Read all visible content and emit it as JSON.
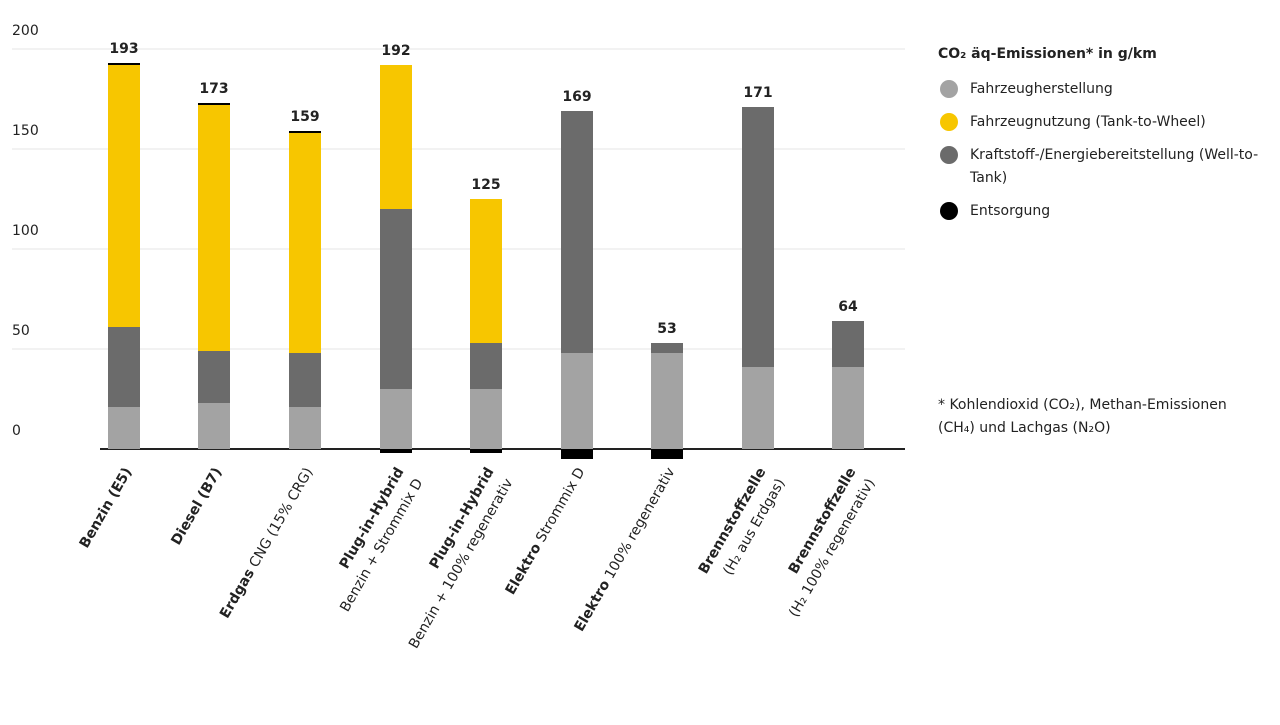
{
  "chart_data": {
    "type": "stacked_bar",
    "categories": [
      [
        {
          "b": "Benzin (E5)"
        }
      ],
      [
        {
          "b": "Diesel (B7)"
        }
      ],
      [
        {
          "b": "Erdgas",
          "t": " CNG (15% CRG)"
        }
      ],
      [
        {
          "b": "Plug-in-Hybrid"
        },
        {
          "t": "Benzin + Strommix D"
        }
      ],
      [
        {
          "b": "Plug-in-Hybrid"
        },
        {
          "t": "Benzin + 100% regenerativ"
        }
      ],
      [
        {
          "b": "Elektro",
          "t": " Strommix D"
        }
      ],
      [
        {
          "b": "Elektro",
          "t": " 100% regenerativ"
        }
      ],
      [
        {
          "b": "Brennstoffzelle"
        },
        {
          "t": "(H₂ aus Erdgas)"
        }
      ],
      [
        {
          "b": "Brennstoffzelle"
        },
        {
          "t": "(H₂ 100% regenerativ)"
        }
      ]
    ],
    "series": [
      {
        "name": "Fahrzeugherstellung",
        "color": "#a3a3a3",
        "values": [
          21,
          23,
          21,
          30,
          30,
          48,
          48,
          41,
          41
        ]
      },
      {
        "name": "Fahrzeugnutzung (Tank-to-Wheel)",
        "color": "#f7c600",
        "values": [
          131,
          123,
          110,
          72,
          72,
          null,
          null,
          null,
          null
        ]
      },
      {
        "name": "Kraftstoff-/Energiebereitstellung (Well-to-Tank)",
        "color": "#6b6b6b",
        "values": [
          40,
          26,
          27,
          90,
          23,
          121,
          5,
          130,
          23
        ]
      },
      {
        "name": "Entsorgung",
        "color": "#000000",
        "values": [
          1,
          1,
          1,
          -2,
          -2,
          -5,
          -5,
          null,
          null
        ]
      }
    ],
    "totals": [
      193,
      173,
      159,
      192,
      125,
      169,
      53,
      171,
      64
    ],
    "legend_title": "CO₂ äq-Emissionen* in g/km",
    "footnote": "* Kohlendioxid (CO₂), Methan-Emissionen (CH₄) und Lachgas (N₂O)",
    "ylim": [
      -5,
      200
    ],
    "yticks": [
      0,
      50,
      100,
      150,
      200
    ],
    "grid": true
  }
}
